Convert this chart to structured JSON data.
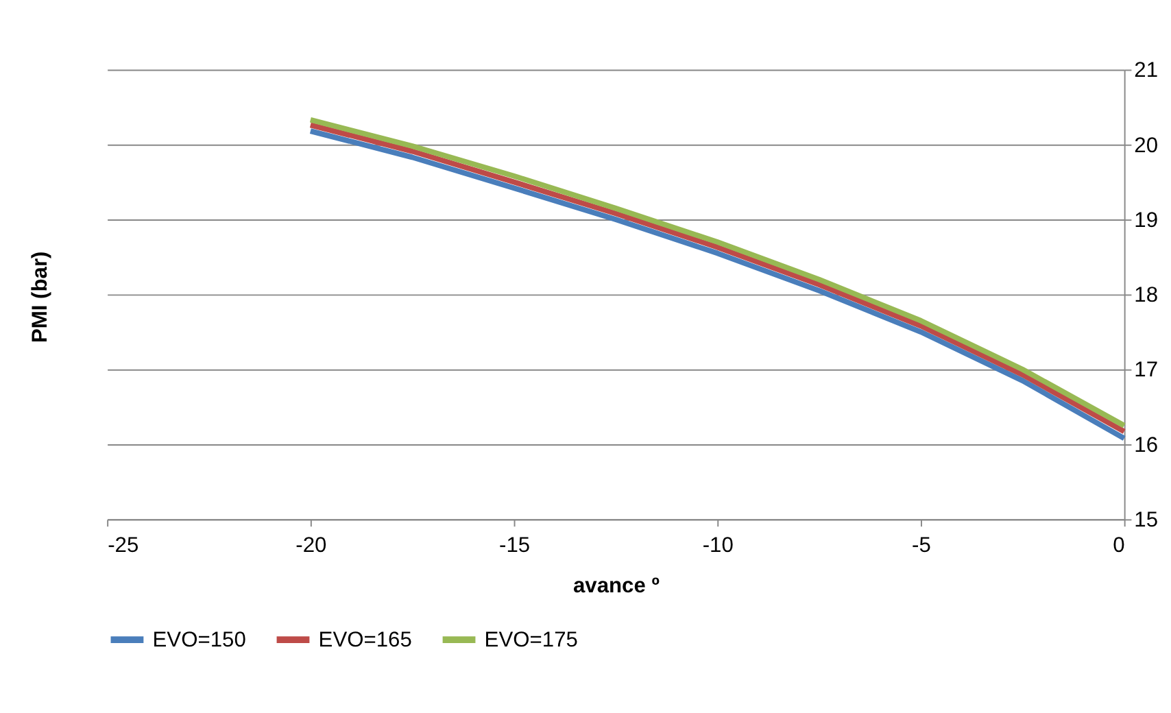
{
  "chart_data": {
    "type": "line",
    "xlabel": "avance º",
    "ylabel": "PMI (bar)",
    "x": [
      -20,
      -17.5,
      -15,
      -12.5,
      -10,
      -7.5,
      -5,
      -2.5,
      0
    ],
    "series": [
      {
        "name": "EVO=150",
        "color": "#4a7ebb",
        "values": [
          20.18,
          19.83,
          19.42,
          19.0,
          18.55,
          18.05,
          17.5,
          16.85,
          16.08
        ]
      },
      {
        "name": "EVO=165",
        "color": "#be4b48",
        "values": [
          20.26,
          19.91,
          19.5,
          19.08,
          18.63,
          18.13,
          17.58,
          16.93,
          16.17
        ]
      },
      {
        "name": "EVO=175",
        "color": "#98b954",
        "values": [
          20.33,
          19.98,
          19.58,
          19.15,
          18.7,
          18.2,
          17.65,
          17.0,
          16.25
        ]
      }
    ],
    "xlim": [
      -25,
      0
    ],
    "xticks": [
      -25,
      -20,
      -15,
      -10,
      -5,
      0
    ],
    "ylim": [
      15,
      21
    ],
    "yticks": [
      15,
      16,
      17,
      18,
      19,
      20,
      21
    ],
    "grid": "y",
    "legend": "bottom",
    "marker": "none",
    "line_style": "solid"
  }
}
